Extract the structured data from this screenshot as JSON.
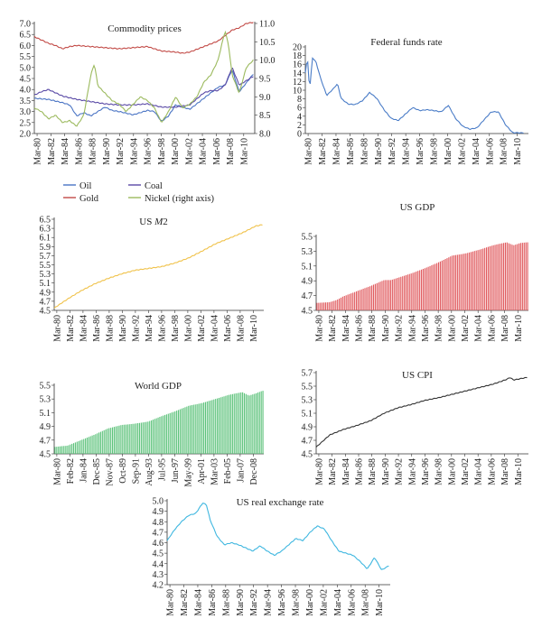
{
  "legend": {
    "oil": "Oil",
    "coal": "Coal",
    "gold": "Gold",
    "nickel": "Nickel (right axis)"
  },
  "chart_data": [
    {
      "id": "commodity",
      "type": "line",
      "title": "Commodity prices",
      "xlabel": "",
      "ylabel": "",
      "x_tick_labels": [
        "Mar-80",
        "Mar-82",
        "Mar-84",
        "Mar-86",
        "Mar-88",
        "Mar-90",
        "Mar-92",
        "Mar-94",
        "Mar-96",
        "Mar-98",
        "Mar-00",
        "Mar-02",
        "Mar-04",
        "Mar-06",
        "Mar-08",
        "Mar-10"
      ],
      "ylim": [
        2,
        7
      ],
      "y_ticks": [
        2,
        2.5,
        3,
        3.5,
        4,
        4.5,
        5,
        5.5,
        6,
        6.5,
        7
      ],
      "y2lim": [
        8,
        11
      ],
      "y2_ticks": [
        8,
        8.5,
        9,
        9.5,
        10,
        10.5,
        11
      ],
      "legend_position": "bottom",
      "series": [
        {
          "name": "Oil",
          "color": "#4a74c4",
          "axis": "left",
          "x": [
            1980,
            1982,
            1984,
            1985,
            1986,
            1987,
            1988,
            1990,
            1991,
            1992,
            1994,
            1996,
            1997,
            1998,
            1999,
            2000,
            2002,
            2004,
            2006,
            2007,
            2008,
            2009,
            2010,
            2011
          ],
          "y": [
            3.6,
            3.55,
            3.4,
            3.3,
            2.8,
            2.95,
            2.8,
            3.2,
            3.05,
            3.0,
            2.85,
            3.05,
            3.0,
            2.55,
            2.8,
            3.3,
            3.1,
            3.6,
            4.1,
            4.2,
            4.9,
            3.9,
            4.3,
            4.7
          ]
        },
        {
          "name": "Coal",
          "color": "#5a4aa6",
          "axis": "left",
          "x": [
            1980,
            1981,
            1982,
            1984,
            1986,
            1988,
            1990,
            1992,
            1994,
            1996,
            1998,
            2000,
            2002,
            2004,
            2005,
            2006,
            2007,
            2008,
            2009,
            2010,
            2011
          ],
          "y": [
            3.75,
            3.9,
            4.0,
            3.7,
            3.55,
            3.45,
            3.35,
            3.3,
            3.3,
            3.35,
            3.2,
            3.2,
            3.3,
            3.85,
            3.95,
            3.95,
            4.2,
            5.0,
            4.2,
            4.4,
            4.6
          ]
        },
        {
          "name": "Gold",
          "color": "#c24a46",
          "axis": "left",
          "x": [
            1980,
            1981,
            1982,
            1983,
            1984,
            1985,
            1986,
            1988,
            1990,
            1992,
            1994,
            1996,
            1998,
            2000,
            2001,
            2002,
            2004,
            2006,
            2008,
            2009,
            2010,
            2011
          ],
          "y": [
            6.4,
            6.25,
            6.1,
            6.0,
            5.85,
            5.95,
            6.0,
            5.95,
            5.9,
            5.85,
            5.9,
            5.95,
            5.75,
            5.7,
            5.65,
            5.7,
            5.95,
            6.2,
            6.7,
            6.8,
            7.0,
            7.05
          ]
        },
        {
          "name": "Nickel (right axis)",
          "color": "#9cba5e",
          "axis": "right",
          "x": [
            1980,
            1981,
            1982,
            1983,
            1984,
            1985,
            1986,
            1987,
            1988,
            1988.5,
            1989,
            1990,
            1991,
            1992,
            1993,
            1994,
            1995,
            1996,
            1997,
            1998,
            1999,
            2000,
            2001,
            2002,
            2003,
            2004,
            2005,
            2006,
            2007,
            2007.5,
            2008,
            2009,
            2010,
            2011
          ],
          "y": [
            8.7,
            8.6,
            8.4,
            8.5,
            8.3,
            8.35,
            8.2,
            8.5,
            9.6,
            9.9,
            9.3,
            9.1,
            8.9,
            8.8,
            8.6,
            8.8,
            9.0,
            8.9,
            8.7,
            8.3,
            8.6,
            9.0,
            8.7,
            8.8,
            9.0,
            9.4,
            9.6,
            10.0,
            10.8,
            10.4,
            9.6,
            9.1,
            9.8,
            10.0
          ]
        }
      ]
    },
    {
      "id": "fedfunds",
      "type": "line",
      "title": "Federal funds rate",
      "xlabel": "",
      "ylabel": "",
      "x_tick_labels": [
        "Mar-80",
        "Mar-82",
        "Mar-84",
        "Mar-86",
        "Mar-88",
        "Mar-90",
        "Mar-92",
        "Mar-94",
        "Mar-96",
        "Mar-98",
        "Mar-00",
        "Mar-02",
        "Mar-04",
        "Mar-06",
        "Mar-08",
        "Mar-10"
      ],
      "ylim": [
        0,
        20
      ],
      "y_ticks": [
        0.0,
        2.0,
        4.0,
        6.0,
        8.0,
        10.0,
        12.0,
        14.0,
        16.0,
        18.0,
        20.0
      ],
      "series": [
        {
          "name": "",
          "color": "#4a7cc7",
          "x": [
            1980,
            1980.3,
            1980.6,
            1981,
            1981.5,
            1982,
            1982.5,
            1983,
            1984,
            1984.5,
            1985,
            1986,
            1987,
            1988,
            1989,
            1990,
            1991,
            1992,
            1993,
            1994,
            1995,
            1996,
            1997,
            1998,
            1999,
            2000,
            2001,
            2002,
            2003,
            2004,
            2005,
            2006,
            2007,
            2008,
            2009,
            2010.5
          ],
          "y": [
            14.0,
            17.5,
            10.0,
            17.5,
            16.5,
            13.5,
            11.0,
            8.8,
            10.5,
            11.5,
            8.1,
            6.8,
            6.7,
            7.6,
            9.5,
            8.1,
            5.5,
            3.5,
            3.0,
            4.5,
            6.0,
            5.3,
            5.5,
            5.3,
            5.0,
            6.5,
            3.5,
            1.7,
            1.0,
            1.3,
            3.2,
            5.0,
            5.0,
            2.0,
            0.2,
            0.15
          ]
        }
      ]
    },
    {
      "id": "m2",
      "type": "line",
      "title": "US M2",
      "xlabel": "",
      "ylabel": "",
      "x_tick_labels": [
        "Mar-80",
        "Mar-82",
        "Mar-84",
        "Mar-86",
        "Mar-88",
        "Mar-90",
        "Mar-92",
        "Mar-94",
        "Mar-96",
        "Mar-98",
        "Mar-00",
        "Mar-02",
        "Mar-04",
        "Mar-06",
        "Mar-08",
        "Mar-10"
      ],
      "ylim": [
        4.5,
        6.5
      ],
      "y_ticks": [
        4.5,
        4.7,
        4.9,
        5.1,
        5.3,
        5.5,
        5.7,
        5.9,
        6.1,
        6.3,
        6.5
      ],
      "series": [
        {
          "name": "",
          "color": "#f0c24a",
          "x": [
            1980,
            1982,
            1984,
            1986,
            1988,
            1990,
            1992,
            1994,
            1996,
            1998,
            2000,
            2002,
            2004,
            2006,
            2008,
            2010,
            2011
          ],
          "y": [
            4.55,
            4.75,
            4.93,
            5.08,
            5.2,
            5.3,
            5.38,
            5.42,
            5.46,
            5.54,
            5.65,
            5.8,
            5.96,
            6.08,
            6.2,
            6.35,
            6.38
          ]
        }
      ]
    },
    {
      "id": "usgdp",
      "type": "bar",
      "title": "US GDP",
      "xlabel": "",
      "ylabel": "",
      "x_tick_labels": [
        "Mar-80",
        "Mar-82",
        "Mar-84",
        "Mar-86",
        "Mar-88",
        "Mar-90",
        "Mar-92",
        "Mar-94",
        "Mar-96",
        "Mar-98",
        "Mar-00",
        "Mar-02",
        "Mar-04",
        "Mar-06",
        "Mar-08",
        "Mar-10"
      ],
      "ylim": [
        4.5,
        5.5
      ],
      "y_ticks": [
        4.5,
        4.7,
        4.9,
        5.1,
        5.3,
        5.5
      ],
      "color": "#e05a5e",
      "series": [
        {
          "name": "",
          "x": [
            1980,
            1982,
            1983,
            1984,
            1986,
            1988,
            1990,
            1991,
            1992,
            1994,
            1996,
            1998,
            2000,
            2002,
            2004,
            2006,
            2008,
            2009,
            2010,
            2011
          ],
          "y": [
            4.6,
            4.61,
            4.64,
            4.69,
            4.76,
            4.83,
            4.91,
            4.91,
            4.94,
            5.0,
            5.07,
            5.15,
            5.24,
            5.27,
            5.32,
            5.38,
            5.42,
            5.38,
            5.41,
            5.42
          ]
        }
      ]
    },
    {
      "id": "worldgdp",
      "type": "bar",
      "title": "World GDP",
      "xlabel": "",
      "ylabel": "",
      "x_tick_labels": [
        "Mar-80",
        "Feb-82",
        "Jan-84",
        "Dec-85",
        "Nov-87",
        "Oct-89",
        "Sep-91",
        "Aug-93",
        "Jul-95",
        "Jun-97",
        "May-99",
        "Apr-01",
        "Mar-03",
        "Feb-05",
        "Jan-07",
        "Dec-08"
      ],
      "ylim": [
        4.5,
        5.5
      ],
      "y_ticks": [
        4.5,
        4.7,
        4.9,
        5.1,
        5.3,
        5.5
      ],
      "color": "#5cc27a",
      "series": [
        {
          "name": "",
          "x": [
            1980,
            1982,
            1984,
            1986,
            1988,
            1990,
            1992,
            1994,
            1996,
            1998,
            2000,
            2002,
            2004,
            2006,
            2008,
            2009,
            2010,
            2011
          ],
          "y": [
            4.6,
            4.62,
            4.7,
            4.78,
            4.87,
            4.92,
            4.94,
            4.97,
            5.05,
            5.12,
            5.2,
            5.24,
            5.3,
            5.36,
            5.4,
            5.35,
            5.38,
            5.42
          ]
        }
      ]
    },
    {
      "id": "cpi",
      "type": "line",
      "title": "US CPI",
      "xlabel": "",
      "ylabel": "",
      "x_tick_labels": [
        "Mar-80",
        "Mar-82",
        "Mar-84",
        "Mar-86",
        "Mar-88",
        "Mar-90",
        "Mar-92",
        "Mar-94",
        "Mar-96",
        "Mar-98",
        "Mar-00",
        "Mar-02",
        "Mar-04",
        "Mar-06",
        "Mar-08",
        "Mar-10"
      ],
      "ylim": [
        4.5,
        5.7
      ],
      "y_ticks": [
        4.5,
        4.7,
        4.9,
        5.1,
        5.3,
        5.5,
        5.7
      ],
      "series": [
        {
          "name": "",
          "color": "#333333",
          "x": [
            1980,
            1982,
            1984,
            1986,
            1988,
            1990,
            1992,
            1994,
            1996,
            1998,
            2000,
            2002,
            2004,
            2006,
            2008,
            2008.5,
            2009,
            2010,
            2011
          ],
          "y": [
            4.6,
            4.78,
            4.86,
            4.92,
            4.99,
            5.1,
            5.18,
            5.23,
            5.29,
            5.33,
            5.38,
            5.43,
            5.48,
            5.53,
            5.6,
            5.63,
            5.59,
            5.61,
            5.63
          ]
        }
      ]
    },
    {
      "id": "rer",
      "type": "line",
      "title": "US real exchange rate",
      "xlabel": "",
      "ylabel": "",
      "x_tick_labels": [
        "Mar-80",
        "Mar-82",
        "Mar-84",
        "Mar-86",
        "Mar-88",
        "Mar-90",
        "Mar-92",
        "Mar-94",
        "Mar-96",
        "Mar-98",
        "Mar-00",
        "Mar-02",
        "Mar-04",
        "Mar-06",
        "Mar-08",
        "Mar-10"
      ],
      "ylim": [
        4.2,
        5.0
      ],
      "y_ticks": [
        4.2,
        4.3,
        4.4,
        4.5,
        4.6,
        4.7,
        4.8,
        4.9,
        5.0
      ],
      "series": [
        {
          "name": "",
          "color": "#3fb7e0",
          "x": [
            1980,
            1981,
            1982,
            1983,
            1984,
            1985,
            1985.5,
            1986,
            1987,
            1988,
            1989,
            1990,
            1991,
            1992,
            1993,
            1994,
            1995,
            1996,
            1997,
            1998,
            1999,
            2000,
            2001,
            2002,
            2003,
            2004,
            2005,
            2006,
            2007,
            2008,
            2009,
            2010,
            2011
          ],
          "y": [
            4.62,
            4.72,
            4.8,
            4.86,
            4.88,
            4.98,
            4.96,
            4.82,
            4.66,
            4.58,
            4.6,
            4.58,
            4.55,
            4.52,
            4.57,
            4.52,
            4.48,
            4.52,
            4.58,
            4.64,
            4.62,
            4.7,
            4.76,
            4.73,
            4.62,
            4.52,
            4.5,
            4.48,
            4.42,
            4.35,
            4.46,
            4.34,
            4.38
          ]
        }
      ]
    }
  ]
}
